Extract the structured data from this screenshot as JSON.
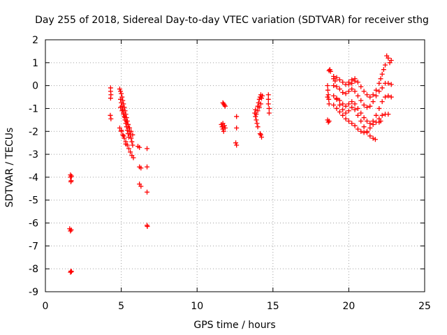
{
  "chart_data": {
    "type": "scatter",
    "title": "Day 255 of 2018, Sidereal Day-to-day VTEC variation (SDTVAR) for receiver sthg",
    "xlabel": "GPS time / hours",
    "ylabel": "SDTVAR / TECUs",
    "xlim": [
      0,
      25
    ],
    "ylim": [
      -9,
      2
    ],
    "xticks": [
      0,
      5,
      10,
      15,
      20,
      25
    ],
    "yticks": [
      -9,
      -8,
      -7,
      -6,
      -5,
      -4,
      -3,
      -2,
      -1,
      0,
      1,
      2
    ],
    "grid": true,
    "marker": "+",
    "color": "#ff0000",
    "series": [
      {
        "name": "SDTVAR",
        "points": [
          [
            1.65,
            -3.9
          ],
          [
            1.65,
            -4.0
          ],
          [
            1.68,
            -4.2
          ],
          [
            1.72,
            -3.95
          ],
          [
            1.7,
            -4.15
          ],
          [
            1.6,
            -6.25
          ],
          [
            1.65,
            -6.35
          ],
          [
            1.7,
            -6.3
          ],
          [
            1.68,
            -8.1
          ],
          [
            1.65,
            -8.15
          ],
          [
            1.72,
            -8.12
          ],
          [
            4.3,
            -0.1
          ],
          [
            4.3,
            -0.25
          ],
          [
            4.32,
            -0.4
          ],
          [
            4.3,
            -0.55
          ],
          [
            4.28,
            -1.3
          ],
          [
            4.32,
            -1.45
          ],
          [
            4.9,
            -0.15
          ],
          [
            4.95,
            -0.25
          ],
          [
            5.0,
            -0.35
          ],
          [
            5.05,
            -0.5
          ],
          [
            5.1,
            -0.65
          ],
          [
            5.15,
            -0.8
          ],
          [
            5.2,
            -0.95
          ],
          [
            5.25,
            -1.1
          ],
          [
            5.3,
            -1.25
          ],
          [
            5.35,
            -1.4
          ],
          [
            5.4,
            -1.55
          ],
          [
            5.45,
            -1.7
          ],
          [
            5.5,
            -1.85
          ],
          [
            5.55,
            -2.0
          ],
          [
            5.6,
            -2.15
          ],
          [
            5.65,
            -2.3
          ],
          [
            5.7,
            -2.45
          ],
          [
            5.75,
            -2.6
          ],
          [
            4.95,
            -0.6
          ],
          [
            5.0,
            -0.75
          ],
          [
            5.05,
            -0.9
          ],
          [
            5.1,
            -1.05
          ],
          [
            5.15,
            -1.2
          ],
          [
            5.2,
            -1.35
          ],
          [
            5.25,
            -1.5
          ],
          [
            5.3,
            -1.65
          ],
          [
            5.35,
            -1.8
          ],
          [
            5.4,
            -1.95
          ],
          [
            5.45,
            -2.1
          ],
          [
            5.5,
            -2.25
          ],
          [
            4.95,
            -0.95
          ],
          [
            5.05,
            -1.1
          ],
          [
            5.15,
            -1.25
          ],
          [
            5.25,
            -1.4
          ],
          [
            5.35,
            -1.55
          ],
          [
            5.45,
            -1.7
          ],
          [
            5.55,
            -1.85
          ],
          [
            5.65,
            -2.0
          ],
          [
            5.75,
            -2.15
          ],
          [
            4.9,
            -1.85
          ],
          [
            5.0,
            -2.0
          ],
          [
            5.1,
            -2.15
          ],
          [
            5.2,
            -2.3
          ],
          [
            5.3,
            -2.45
          ],
          [
            5.4,
            -2.6
          ],
          [
            5.5,
            -2.75
          ],
          [
            5.6,
            -2.9
          ],
          [
            5.7,
            -3.05
          ],
          [
            5.8,
            -3.15
          ],
          [
            5.0,
            -1.95
          ],
          [
            5.15,
            -2.2
          ],
          [
            5.3,
            -2.55
          ],
          [
            6.1,
            -2.65
          ],
          [
            6.2,
            -2.7
          ],
          [
            6.7,
            -2.75
          ],
          [
            6.2,
            -3.55
          ],
          [
            6.3,
            -3.6
          ],
          [
            6.7,
            -3.55
          ],
          [
            6.2,
            -4.3
          ],
          [
            6.3,
            -4.4
          ],
          [
            6.7,
            -4.65
          ],
          [
            6.7,
            -6.1
          ],
          [
            6.72,
            -6.15
          ],
          [
            11.7,
            -0.75
          ],
          [
            11.75,
            -0.8
          ],
          [
            11.8,
            -0.85
          ],
          [
            11.85,
            -0.9
          ],
          [
            11.6,
            -1.7
          ],
          [
            11.65,
            -1.8
          ],
          [
            11.7,
            -1.9
          ],
          [
            11.75,
            -2.0
          ],
          [
            11.8,
            -1.75
          ],
          [
            11.85,
            -1.85
          ],
          [
            11.7,
            -1.65
          ],
          [
            12.6,
            -1.35
          ],
          [
            12.6,
            -1.85
          ],
          [
            12.55,
            -2.5
          ],
          [
            12.6,
            -2.6
          ],
          [
            13.8,
            -1.2
          ],
          [
            13.85,
            -1.35
          ],
          [
            13.9,
            -1.5
          ],
          [
            13.95,
            -1.65
          ],
          [
            14.0,
            -1.8
          ],
          [
            13.85,
            -1.05
          ],
          [
            14.0,
            -0.9
          ],
          [
            14.05,
            -0.75
          ],
          [
            14.1,
            -0.6
          ],
          [
            14.15,
            -0.5
          ],
          [
            14.2,
            -0.4
          ],
          [
            13.9,
            -1.25
          ],
          [
            14.0,
            -1.1
          ],
          [
            14.1,
            -0.95
          ],
          [
            14.2,
            -0.8
          ],
          [
            14.2,
            -2.15
          ],
          [
            14.25,
            -2.25
          ],
          [
            14.15,
            -2.1
          ],
          [
            14.3,
            -0.45
          ],
          [
            14.25,
            -0.55
          ],
          [
            14.7,
            -0.4
          ],
          [
            14.7,
            -0.6
          ],
          [
            14.7,
            -0.8
          ],
          [
            14.75,
            -1.0
          ],
          [
            14.75,
            -1.2
          ],
          [
            18.7,
            0.65
          ],
          [
            18.75,
            0.7
          ],
          [
            18.8,
            0.62
          ],
          [
            18.6,
            -1.5
          ],
          [
            18.65,
            -1.6
          ],
          [
            18.7,
            -1.55
          ],
          [
            18.6,
            0.0
          ],
          [
            18.62,
            -0.2
          ],
          [
            18.65,
            -0.4
          ],
          [
            18.68,
            -0.6
          ],
          [
            18.7,
            -0.8
          ],
          [
            18.6,
            -0.5
          ],
          [
            19.0,
            0.4
          ],
          [
            19.2,
            0.35
          ],
          [
            19.4,
            0.25
          ],
          [
            19.6,
            0.15
          ],
          [
            19.8,
            0.05
          ],
          [
            20.0,
            0.05
          ],
          [
            20.2,
            0.1
          ],
          [
            20.4,
            0.2
          ],
          [
            20.6,
            0.15
          ],
          [
            20.8,
            -0.05
          ],
          [
            21.0,
            -0.25
          ],
          [
            21.2,
            -0.4
          ],
          [
            21.4,
            -0.5
          ],
          [
            21.6,
            -0.4
          ],
          [
            21.8,
            -0.2
          ],
          [
            22.0,
            0.1
          ],
          [
            22.2,
            0.5
          ],
          [
            22.4,
            0.9
          ],
          [
            22.6,
            1.2
          ],
          [
            22.8,
            1.1
          ],
          [
            22.5,
            1.3
          ],
          [
            22.7,
            1.0
          ],
          [
            22.3,
            0.7
          ],
          [
            22.1,
            0.3
          ],
          [
            19.0,
            0.0
          ],
          [
            19.2,
            -0.05
          ],
          [
            19.4,
            -0.15
          ],
          [
            19.6,
            -0.3
          ],
          [
            19.8,
            -0.35
          ],
          [
            20.0,
            -0.25
          ],
          [
            20.2,
            -0.15
          ],
          [
            20.4,
            -0.25
          ],
          [
            20.6,
            -0.45
          ],
          [
            20.8,
            -0.65
          ],
          [
            21.0,
            -0.85
          ],
          [
            21.2,
            -0.95
          ],
          [
            21.4,
            -0.9
          ],
          [
            21.6,
            -0.7
          ],
          [
            21.8,
            -0.45
          ],
          [
            22.0,
            -0.25
          ],
          [
            22.2,
            -0.1
          ],
          [
            22.4,
            0.1
          ],
          [
            22.6,
            0.1
          ],
          [
            22.8,
            0.05
          ],
          [
            19.0,
            -0.45
          ],
          [
            19.2,
            -0.55
          ],
          [
            19.4,
            -0.65
          ],
          [
            19.6,
            -0.8
          ],
          [
            19.8,
            -0.9
          ],
          [
            20.0,
            -0.8
          ],
          [
            20.2,
            -0.7
          ],
          [
            20.4,
            -0.8
          ],
          [
            20.6,
            -1.0
          ],
          [
            20.8,
            -1.2
          ],
          [
            21.0,
            -1.4
          ],
          [
            21.2,
            -1.55
          ],
          [
            21.4,
            -1.65
          ],
          [
            21.6,
            -1.55
          ],
          [
            21.8,
            -1.3
          ],
          [
            22.0,
            -1.0
          ],
          [
            22.2,
            -0.7
          ],
          [
            22.4,
            -0.5
          ],
          [
            22.6,
            -0.45
          ],
          [
            22.8,
            -0.5
          ],
          [
            19.0,
            -0.85
          ],
          [
            19.2,
            -1.0
          ],
          [
            19.4,
            -1.15
          ],
          [
            19.6,
            -1.3
          ],
          [
            19.8,
            -1.45
          ],
          [
            20.0,
            -1.55
          ],
          [
            20.2,
            -1.65
          ],
          [
            20.4,
            -1.75
          ],
          [
            20.6,
            -1.9
          ],
          [
            20.8,
            -2.0
          ],
          [
            21.0,
            -2.05
          ],
          [
            21.2,
            -2.0
          ],
          [
            21.4,
            -1.85
          ],
          [
            21.6,
            -1.7
          ],
          [
            21.8,
            -1.6
          ],
          [
            22.0,
            -1.45
          ],
          [
            22.2,
            -1.3
          ],
          [
            22.4,
            -1.25
          ],
          [
            22.6,
            -1.25
          ],
          [
            19.2,
            -0.6
          ],
          [
            19.4,
            -0.85
          ],
          [
            19.6,
            -1.05
          ],
          [
            19.8,
            -1.2
          ],
          [
            20.0,
            -1.1
          ],
          [
            20.2,
            -0.95
          ],
          [
            20.4,
            -1.05
          ],
          [
            20.6,
            -1.3
          ],
          [
            20.8,
            -1.55
          ],
          [
            21.0,
            -1.8
          ],
          [
            21.2,
            -2.05
          ],
          [
            21.4,
            -2.2
          ],
          [
            21.6,
            -2.3
          ],
          [
            21.75,
            -2.35
          ],
          [
            19.0,
            0.3
          ],
          [
            19.1,
            0.2
          ],
          [
            20.0,
            0.15
          ],
          [
            20.2,
            0.25
          ],
          [
            20.4,
            0.3
          ],
          [
            22.0,
            -1.6
          ],
          [
            22.1,
            -1.55
          ]
        ]
      }
    ]
  }
}
